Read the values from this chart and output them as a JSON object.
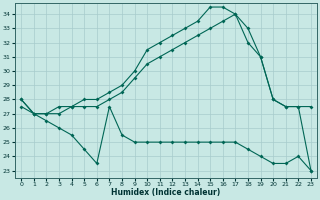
{
  "xlabel": "Humidex (Indice chaleur)",
  "background_color": "#c8e8e4",
  "grid_color": "#a8cccc",
  "line_color": "#006655",
  "x_ticks": [
    0,
    1,
    2,
    3,
    4,
    5,
    6,
    7,
    8,
    9,
    10,
    11,
    12,
    13,
    14,
    15,
    16,
    17,
    18,
    19,
    20,
    21,
    22,
    23
  ],
  "y_ticks": [
    23,
    24,
    25,
    26,
    27,
    28,
    29,
    30,
    31,
    32,
    33,
    34
  ],
  "ylim": [
    22.5,
    34.8
  ],
  "xlim": [
    -0.5,
    23.5
  ],
  "curve_high": [
    28.0,
    27.0,
    27.0,
    27.5,
    27.5,
    28.0,
    28.0,
    28.5,
    29.0,
    30.0,
    31.5,
    32.0,
    32.5,
    33.0,
    33.5,
    34.5,
    34.5,
    34.0,
    33.0,
    31.0,
    28.0,
    27.5,
    27.5,
    23.0
  ],
  "curve_mid": [
    27.5,
    27.0,
    27.0,
    27.0,
    27.5,
    27.5,
    27.5,
    28.0,
    28.5,
    29.5,
    30.5,
    31.0,
    31.5,
    32.0,
    32.5,
    33.0,
    33.5,
    34.0,
    32.0,
    31.0,
    28.0,
    27.5,
    27.5,
    27.5
  ],
  "curve_low": [
    28.0,
    27.0,
    26.5,
    26.0,
    25.5,
    24.5,
    23.5,
    27.5,
    25.5,
    25.0,
    25.0,
    25.0,
    25.0,
    25.0,
    25.0,
    25.0,
    25.0,
    25.0,
    24.5,
    24.0,
    23.5,
    23.5,
    24.0,
    23.0
  ]
}
